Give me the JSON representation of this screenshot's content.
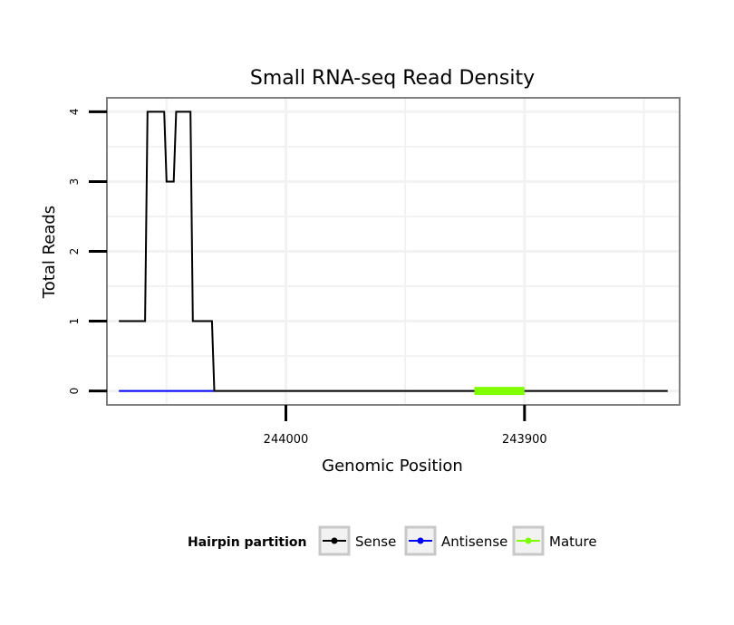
{
  "chart_data": {
    "type": "line",
    "title": "Small RNA-seq Read Density",
    "xlabel": "Genomic Position",
    "ylabel": "Total Reads",
    "x_reversed": true,
    "xlim": [
      244075,
      243835
    ],
    "ylim": [
      -0.2,
      4.2
    ],
    "x_ticks": [
      244000,
      243900
    ],
    "x_tick_labels": [
      "244000",
      "243900"
    ],
    "y_ticks": [
      0,
      1,
      2,
      3,
      4
    ],
    "y_tick_labels": [
      "0",
      "1",
      "2",
      "3",
      "4"
    ],
    "grid": true,
    "legend": {
      "title": "Hairpin partition",
      "position": "bottom",
      "entries": [
        "Sense",
        "Antisense",
        "Mature"
      ]
    },
    "series": [
      {
        "name": "Sense",
        "color": "#000000",
        "x": [
          244070,
          244059,
          244058,
          244051,
          244050,
          244047,
          244046,
          244040,
          244039,
          244031,
          244030,
          243840
        ],
        "y": [
          1,
          1,
          4,
          4,
          3,
          3,
          4,
          4,
          1,
          1,
          0,
          0
        ]
      },
      {
        "name": "Antisense",
        "color": "#0000ff",
        "x": [
          244070,
          244030
        ],
        "y": [
          0,
          0
        ]
      },
      {
        "name": "Mature",
        "color": "#7fff00",
        "x": [
          243921,
          243900
        ],
        "y": [
          0,
          0
        ]
      }
    ]
  }
}
